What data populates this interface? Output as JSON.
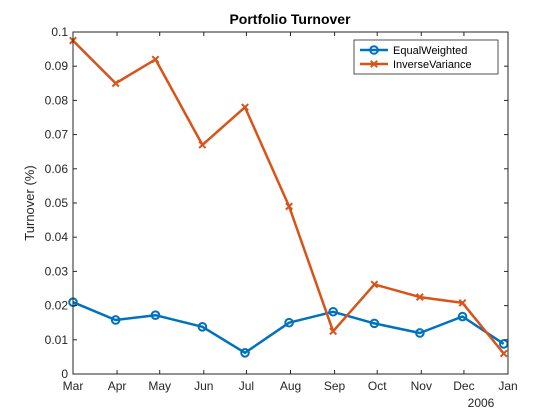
{
  "chart_data": {
    "type": "line",
    "title": "Portfolio Turnover",
    "xlabel": "",
    "ylabel": "Turnover (%)",
    "x_tick_labels": [
      "Mar",
      "Apr",
      "May",
      "Jun",
      "Jul",
      "Aug",
      "Sep",
      "Oct",
      "Nov",
      "Dec",
      "Jan"
    ],
    "x_secondary_label": "2006",
    "ylim": [
      0,
      0.1
    ],
    "y_ticks": [
      "0",
      "0.01",
      "0.02",
      "0.03",
      "0.04",
      "0.05",
      "0.06",
      "0.07",
      "0.08",
      "0.09",
      "0.1"
    ],
    "grid": false,
    "legend_position": "top-right",
    "series": [
      {
        "name": "EqualWeighted",
        "color": "#0072BD",
        "marker": "circle",
        "points": [
          {
            "x": "2006-03-01",
            "y": 0.021
          },
          {
            "x": "2006-03-31",
            "y": 0.0158
          },
          {
            "x": "2006-04-28",
            "y": 0.0172
          },
          {
            "x": "2006-05-31",
            "y": 0.0138
          },
          {
            "x": "2006-06-30",
            "y": 0.0062
          },
          {
            "x": "2006-07-31",
            "y": 0.015
          },
          {
            "x": "2006-08-31",
            "y": 0.0182
          },
          {
            "x": "2006-09-29",
            "y": 0.0148
          },
          {
            "x": "2006-10-31",
            "y": 0.012
          },
          {
            "x": "2006-11-30",
            "y": 0.0168
          },
          {
            "x": "2006-12-29",
            "y": 0.0088
          }
        ]
      },
      {
        "name": "InverseVariance",
        "color": "#D95319",
        "marker": "x",
        "points": [
          {
            "x": "2006-03-01",
            "y": 0.0975
          },
          {
            "x": "2006-03-31",
            "y": 0.085
          },
          {
            "x": "2006-04-28",
            "y": 0.092
          },
          {
            "x": "2006-05-31",
            "y": 0.067
          },
          {
            "x": "2006-06-30",
            "y": 0.078
          },
          {
            "x": "2006-07-31",
            "y": 0.049
          },
          {
            "x": "2006-08-31",
            "y": 0.0125
          },
          {
            "x": "2006-09-29",
            "y": 0.0262
          },
          {
            "x": "2006-10-31",
            "y": 0.0225
          },
          {
            "x": "2006-11-30",
            "y": 0.0208
          },
          {
            "x": "2006-12-29",
            "y": 0.006
          }
        ]
      }
    ]
  }
}
